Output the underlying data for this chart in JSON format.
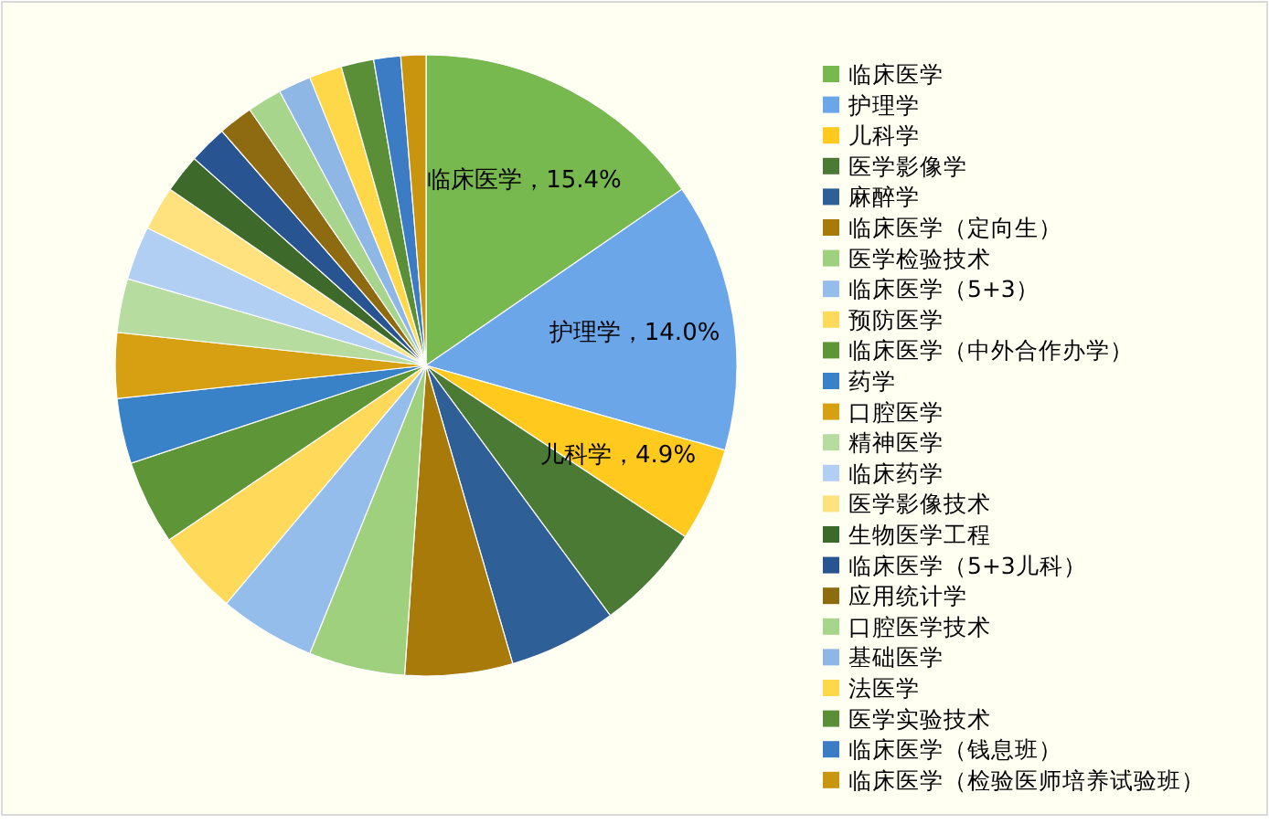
{
  "chart_data": {
    "type": "pie",
    "categories": [
      "临床医学",
      "护理学",
      "儿科学",
      "医学影像学",
      "麻醉学",
      "临床医学（定向生）",
      "医学检验技术",
      "临床医学（5+3）",
      "预防医学",
      "临床医学（中外合作办学）",
      "药学",
      "口腔医学",
      "精神医学",
      "临床药学",
      "医学影像技术",
      "生物医学工程",
      "临床医学（5+3儿科）",
      "应用统计学",
      "口腔医学技术",
      "基础医学",
      "法医学",
      "医学实验技术",
      "临床医学（钱息班）",
      "临床医学（检验医师培养试验班）"
    ],
    "values": [
      15.4,
      14.0,
      4.9,
      5.6,
      5.6,
      5.6,
      5.0,
      5.0,
      4.4,
      4.4,
      3.4,
      3.4,
      2.8,
      2.8,
      2.3,
      2.0,
      2.0,
      1.8,
      1.8,
      1.7,
      1.7,
      1.7,
      1.4,
      1.3
    ],
    "colors": [
      "#77b84f",
      "#6aa6e8",
      "#ffc91e",
      "#4a7a34",
      "#2e5f96",
      "#a77a0a",
      "#9fd07d",
      "#95bdeb",
      "#ffd95a",
      "#5e9637",
      "#3a82c8",
      "#d7a012",
      "#b7dca0",
      "#b0cff2",
      "#ffe17e",
      "#3d6a2a",
      "#285592",
      "#8e6a10",
      "#a8d58c",
      "#8fb7e5",
      "#ffd84a",
      "#5b8f37",
      "#3b7cc4",
      "#c9950e"
    ],
    "value_labels": [
      "临床医学，15.4%",
      "护理学，14.0%",
      "儿科学，4.9%",
      null,
      null,
      null,
      null,
      null,
      null,
      null,
      null,
      null,
      null,
      null,
      null,
      null,
      null,
      null,
      null,
      null,
      null,
      null,
      null,
      null
    ],
    "legend": "right"
  }
}
